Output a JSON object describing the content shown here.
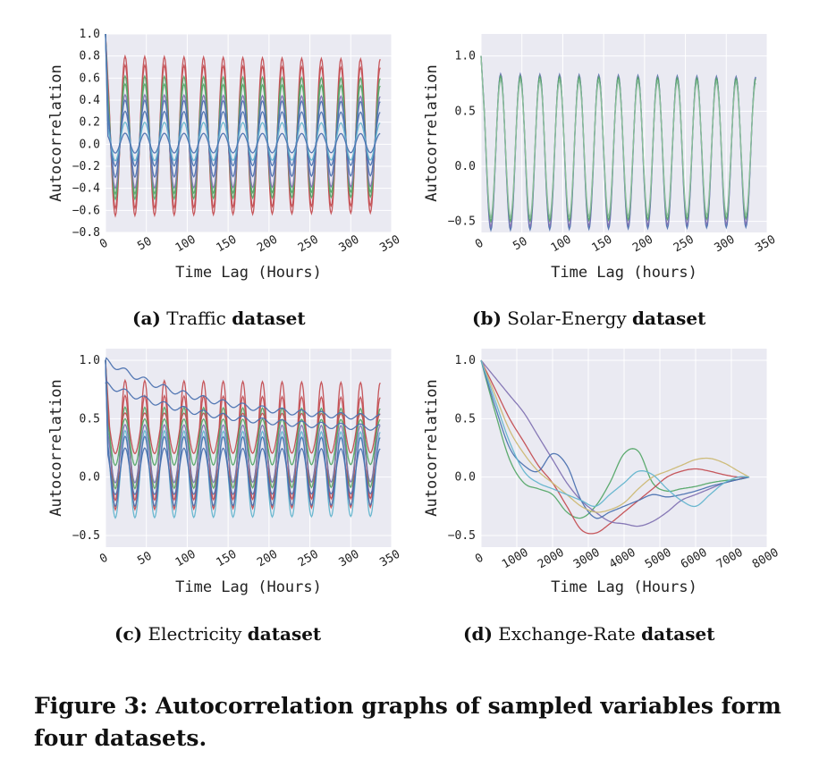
{
  "figure_caption": "Figure 3: Autocorrelation graphs of sampled variables form four datasets.",
  "colors": [
    "#4c72b0",
    "#55a868",
    "#c44e52",
    "#8172b2",
    "#ccb974",
    "#64b5cd"
  ],
  "chart_data": [
    {
      "type": "line",
      "id": "a",
      "caption_label": "(a)",
      "caption_name": "Traffic",
      "caption_suffix": "dataset",
      "xlabel": "Time Lag (Hours)",
      "ylabel": "Autocorrelation",
      "xlim": [
        0,
        350
      ],
      "ylim": [
        -0.8,
        1.0
      ],
      "xticks": [
        0,
        50,
        100,
        150,
        200,
        250,
        300,
        350
      ],
      "yticks": [
        -0.8,
        -0.6,
        -0.4,
        -0.2,
        0.0,
        0.2,
        0.4,
        0.6,
        0.8,
        1.0
      ],
      "ytick_labels": [
        "−0.8",
        "−0.6",
        "−0.4",
        "−0.2",
        "0.0",
        "0.2",
        "0.4",
        "0.6",
        "0.8",
        "1.0"
      ],
      "grid": true,
      "period": 24,
      "xmax_data": 336,
      "series": [
        {
          "color": "#c44e52",
          "peak": 0.8,
          "trough": -0.65
        },
        {
          "color": "#c44e52",
          "peak": 0.72,
          "trough": -0.58
        },
        {
          "color": "#55a868",
          "peak": 0.62,
          "trough": -0.5
        },
        {
          "color": "#55a868",
          "peak": 0.55,
          "trough": -0.45
        },
        {
          "color": "#8172b2",
          "peak": 0.45,
          "trough": -0.4
        },
        {
          "color": "#4c72b0",
          "peak": 0.4,
          "trough": -0.3
        },
        {
          "color": "#4c72b0",
          "peak": 0.3,
          "trough": -0.2
        },
        {
          "color": "#64b5cd",
          "peak": 0.2,
          "trough": -0.15
        },
        {
          "color": "#4c72b0",
          "peak": 0.1,
          "trough": -0.08
        }
      ]
    },
    {
      "type": "line",
      "id": "b",
      "caption_label": "(b)",
      "caption_name": "Solar-Energy",
      "caption_suffix": "dataset",
      "xlabel": "Time Lag (hours)",
      "ylabel": "Autocorrelation",
      "xlim": [
        0,
        350
      ],
      "ylim": [
        -0.6,
        1.2
      ],
      "xticks": [
        0,
        50,
        100,
        150,
        200,
        250,
        300,
        350
      ],
      "yticks": [
        -0.5,
        0.0,
        0.5,
        1.0
      ],
      "ytick_labels": [
        "−0.5",
        "0.0",
        "0.5",
        "1.0"
      ],
      "grid": true,
      "period": 24,
      "xmax_data": 336,
      "series": [
        {
          "color": "#4c72b0",
          "peak": 0.84,
          "trough": -0.58
        },
        {
          "color": "#8172b2",
          "peak": 0.83,
          "trough": -0.55
        },
        {
          "color": "#55a868",
          "peak": 0.82,
          "trough": -0.5
        },
        {
          "color": "#8fbf9f",
          "peak": 0.78,
          "trough": -0.46
        }
      ]
    },
    {
      "type": "line",
      "id": "c",
      "caption_label": "(c)",
      "caption_name": "Electricity",
      "caption_suffix": "dataset",
      "xlabel": "Time Lag (Hours)",
      "ylabel": "Autocorrelation",
      "xlim": [
        0,
        350
      ],
      "ylim": [
        -0.6,
        1.1
      ],
      "xticks": [
        0,
        50,
        100,
        150,
        200,
        250,
        300,
        350
      ],
      "yticks": [
        -0.5,
        0.0,
        0.5,
        1.0
      ],
      "ytick_labels": [
        "−0.5",
        "0.0",
        "0.5",
        "1.0"
      ],
      "grid": true,
      "period": 24,
      "xmax_data": 336,
      "series": [
        {
          "color": "#c44e52",
          "peak": 0.83,
          "trough": -0.28
        },
        {
          "color": "#c44e52",
          "peak": 0.7,
          "trough": -0.2
        },
        {
          "color": "#55a868",
          "peak": 0.6,
          "trough": -0.1
        },
        {
          "color": "#c44e52",
          "peak": 0.55,
          "trough": 0.2
        },
        {
          "color": "#55a868",
          "peak": 0.5,
          "trough": 0.1
        },
        {
          "color": "#8172b2",
          "peak": 0.45,
          "trough": -0.05
        },
        {
          "color": "#64b5cd",
          "peak": 0.4,
          "trough": -0.35
        },
        {
          "color": "#4c72b0",
          "peak": 0.35,
          "trough": -0.25
        },
        {
          "color": "#4c72b0",
          "peak": 0.25,
          "trough": -0.15
        },
        {
          "color": "#4c72b0",
          "start": 1.0,
          "end": 0.48,
          "decay": true
        },
        {
          "color": "#4c72b0",
          "start": 0.8,
          "end": 0.4,
          "decay": true
        }
      ]
    },
    {
      "type": "line",
      "id": "d",
      "caption_label": "(d)",
      "caption_name": "Exchange-Rate",
      "caption_suffix": "dataset",
      "xlabel": "Time Lag (Hours)",
      "ylabel": "Autocorrelation",
      "xlim": [
        0,
        8000
      ],
      "ylim": [
        -0.6,
        1.1
      ],
      "xticks": [
        0,
        1000,
        2000,
        3000,
        4000,
        5000,
        6000,
        7000,
        8000
      ],
      "yticks": [
        -0.5,
        0.0,
        0.5,
        1.0
      ],
      "ytick_labels": [
        "−0.5",
        "0.0",
        "0.5",
        "1.0"
      ],
      "grid": true,
      "series": [
        {
          "color": "#55a868",
          "x": [
            0,
            400,
            800,
            1200,
            1600,
            2000,
            2400,
            2800,
            3200,
            3600,
            4000,
            4400,
            4800,
            5200,
            5600,
            6000,
            6400,
            6800,
            7200,
            7500
          ],
          "y": [
            1.0,
            0.55,
            0.15,
            -0.05,
            -0.1,
            -0.15,
            -0.3,
            -0.35,
            -0.25,
            -0.05,
            0.2,
            0.22,
            -0.05,
            -0.12,
            -0.1,
            -0.08,
            -0.05,
            -0.03,
            -0.02,
            0.0
          ]
        },
        {
          "color": "#c44e52",
          "x": [
            0,
            400,
            800,
            1200,
            1600,
            2000,
            2400,
            2800,
            3200,
            3600,
            4000,
            4400,
            4800,
            5200,
            5600,
            6000,
            6400,
            6800,
            7200,
            7500
          ],
          "y": [
            1.0,
            0.75,
            0.5,
            0.3,
            0.1,
            -0.05,
            -0.25,
            -0.45,
            -0.48,
            -0.4,
            -0.3,
            -0.2,
            -0.1,
            0.0,
            0.05,
            0.07,
            0.05,
            0.02,
            0.0,
            0.0
          ]
        },
        {
          "color": "#8172b2",
          "x": [
            0,
            400,
            800,
            1200,
            1600,
            2000,
            2400,
            2800,
            3200,
            3600,
            4000,
            4400,
            4800,
            5200,
            5600,
            6000,
            6400,
            6800,
            7200,
            7500
          ],
          "y": [
            1.0,
            0.85,
            0.7,
            0.55,
            0.35,
            0.15,
            -0.05,
            -0.2,
            -0.3,
            -0.38,
            -0.4,
            -0.42,
            -0.38,
            -0.3,
            -0.2,
            -0.15,
            -0.1,
            -0.05,
            -0.02,
            0.0
          ]
        },
        {
          "color": "#4c72b0",
          "x": [
            0,
            400,
            800,
            1200,
            1600,
            2000,
            2400,
            2800,
            3200,
            3600,
            4000,
            4400,
            4800,
            5200,
            5600,
            6000,
            6400,
            6800,
            7200,
            7500
          ],
          "y": [
            1.0,
            0.6,
            0.25,
            0.1,
            0.05,
            0.2,
            0.1,
            -0.2,
            -0.35,
            -0.3,
            -0.25,
            -0.2,
            -0.15,
            -0.17,
            -0.15,
            -0.12,
            -0.08,
            -0.05,
            -0.02,
            0.0
          ]
        },
        {
          "color": "#ccb974",
          "x": [
            0,
            400,
            800,
            1200,
            1600,
            2000,
            2400,
            2800,
            3200,
            3600,
            4000,
            4400,
            4800,
            5200,
            5600,
            6000,
            6400,
            6800,
            7200,
            7500
          ],
          "y": [
            1.0,
            0.7,
            0.4,
            0.2,
            0.05,
            -0.05,
            -0.15,
            -0.25,
            -0.3,
            -0.28,
            -0.22,
            -0.1,
            0.0,
            0.05,
            0.1,
            0.15,
            0.16,
            0.12,
            0.05,
            0.0
          ]
        },
        {
          "color": "#64b5cd",
          "x": [
            0,
            400,
            800,
            1200,
            1600,
            2000,
            2400,
            2800,
            3200,
            3600,
            4000,
            4400,
            4800,
            5200,
            5600,
            6000,
            6400,
            6800,
            7200,
            7500
          ],
          "y": [
            1.0,
            0.65,
            0.3,
            0.05,
            -0.05,
            -0.1,
            -0.15,
            -0.2,
            -0.25,
            -0.15,
            -0.05,
            0.05,
            0.02,
            -0.1,
            -0.2,
            -0.25,
            -0.15,
            -0.05,
            0.0,
            0.0
          ]
        }
      ]
    }
  ]
}
